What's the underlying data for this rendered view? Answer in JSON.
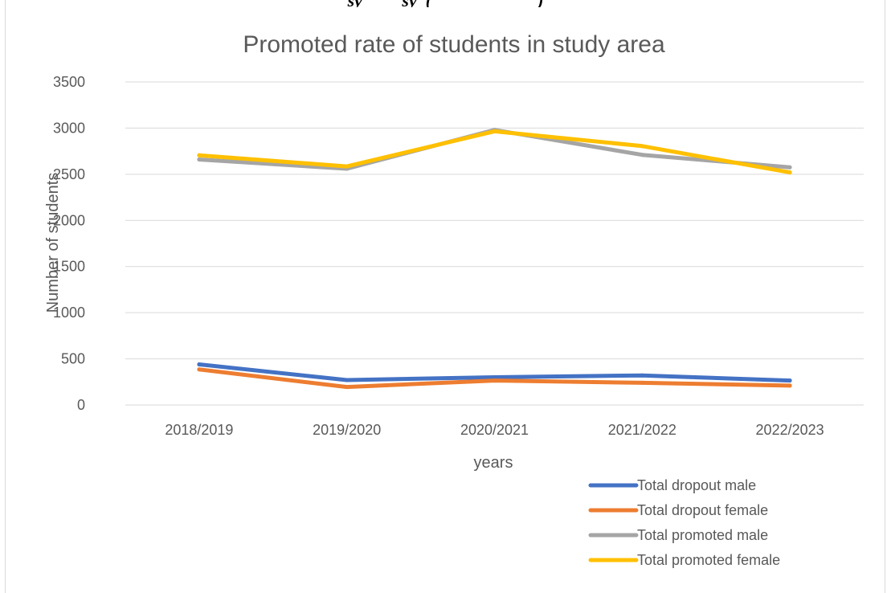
{
  "header_fragment": "sy         sy  (                        )",
  "chart_data": {
    "type": "line",
    "title": "Promoted  rate  of  students in study area",
    "xlabel": "years",
    "ylabel": "Number of students",
    "categories": [
      "2018/2019",
      "2019/2020",
      "2020/2021",
      "2021/2022",
      "2022/2023"
    ],
    "ylim": [
      0,
      3500
    ],
    "yticks": [
      0,
      500,
      1000,
      1500,
      2000,
      2500,
      3000,
      3500
    ],
    "grid": true,
    "legend_position": "bottom-right",
    "series": [
      {
        "name": "Total dropout male",
        "color": "#4472C4",
        "values": [
          440,
          270,
          300,
          320,
          265
        ]
      },
      {
        "name": "Total dropout female",
        "color": "#ED7D31",
        "values": [
          385,
          195,
          265,
          240,
          210
        ]
      },
      {
        "name": "Total promoted male",
        "color": "#A5A5A5",
        "values": [
          2660,
          2560,
          2980,
          2710,
          2575
        ]
      },
      {
        "name": "Total promoted female",
        "color": "#FFC000",
        "values": [
          2705,
          2585,
          2965,
          2805,
          2520
        ]
      }
    ]
  }
}
